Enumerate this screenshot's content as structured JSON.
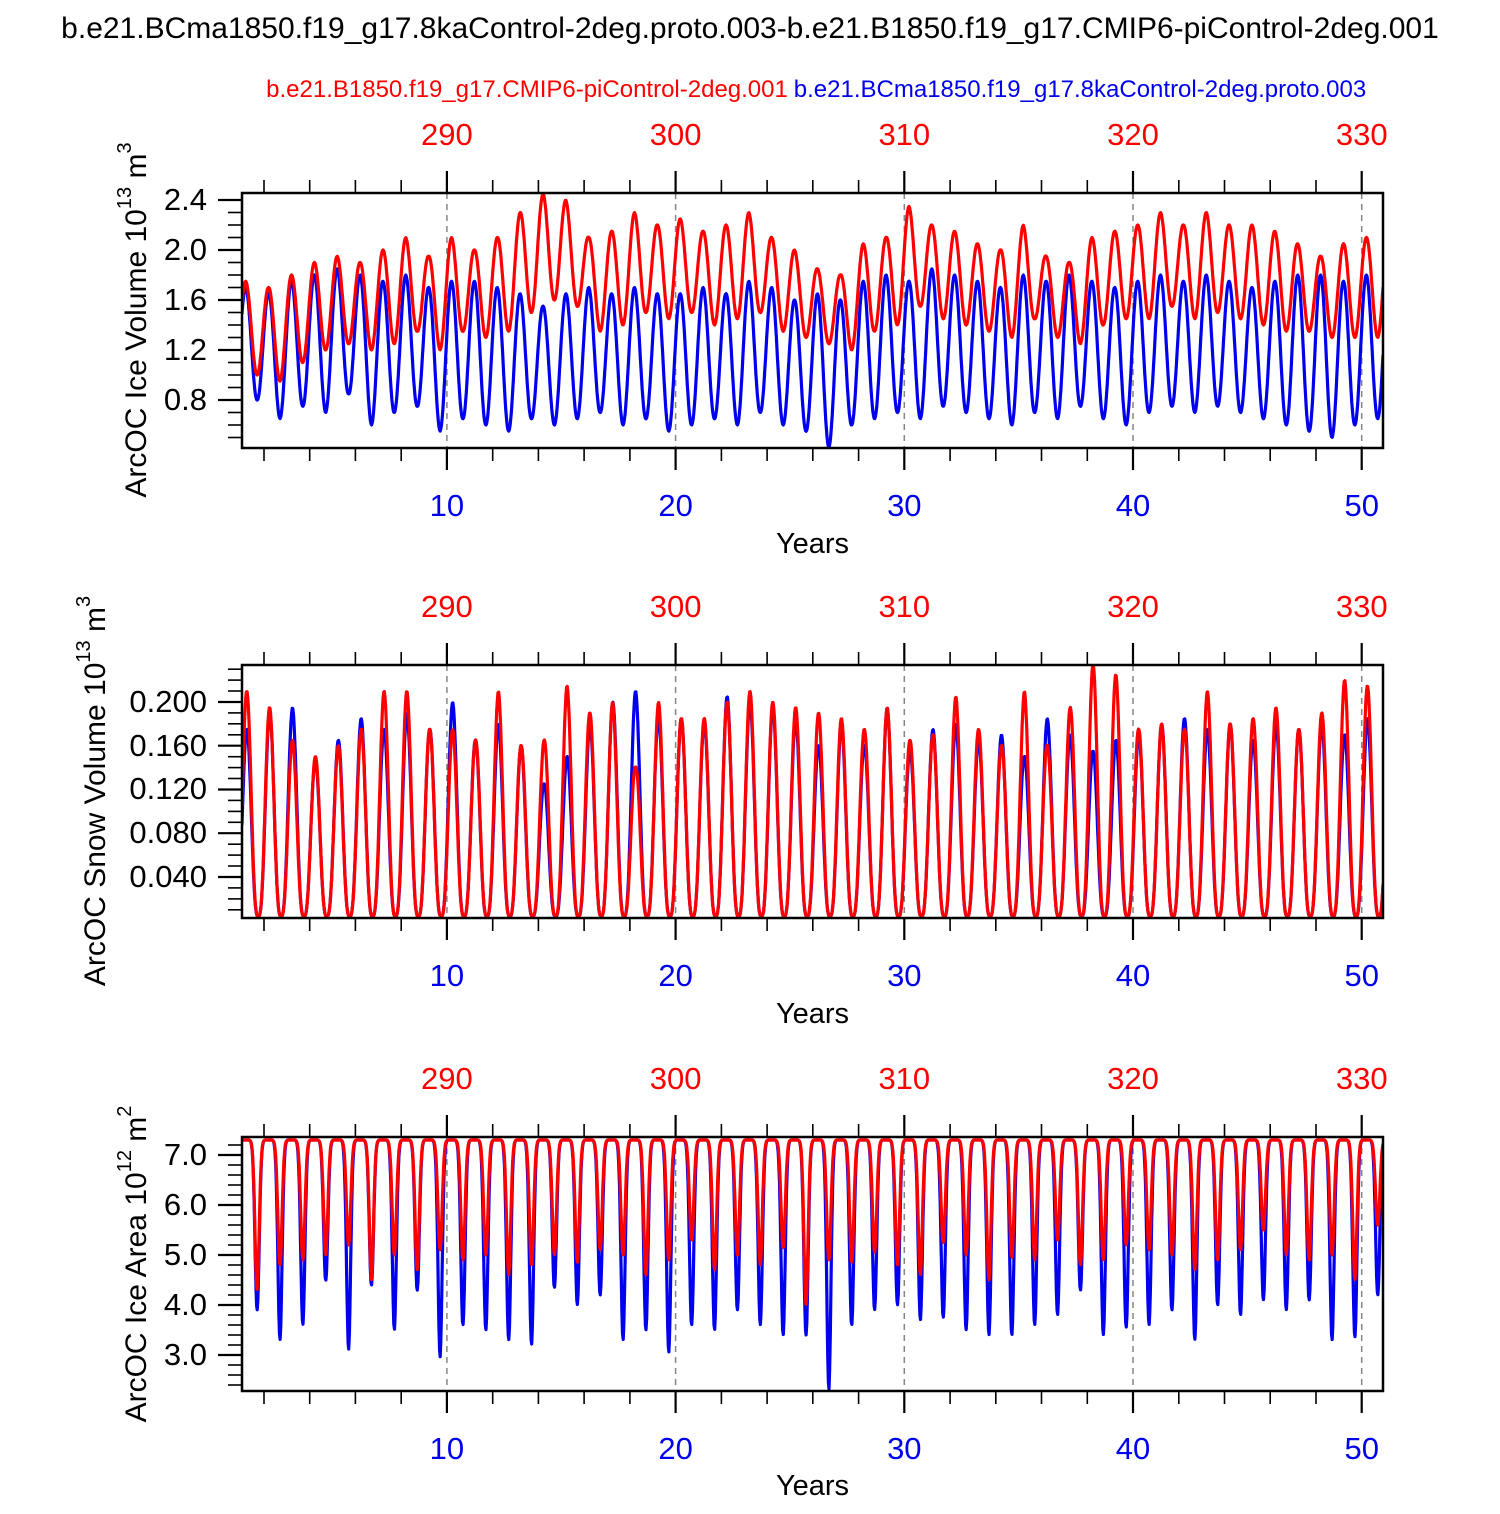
{
  "title": "b.e21.BCma1850.f19_g17.8kaControl-2deg.proto.003-b.e21.B1850.f19_g17.CMIP6-piControl-2deg.001",
  "legend": {
    "red": "b.e21.B1850.f19_g17.CMIP6-piControl-2deg.001",
    "blue": "b.e21.BCma1850.f19_g17.8kaControl-2deg.proto.003"
  },
  "colors": {
    "red": "#ff0000",
    "blue": "#0000ee",
    "grid": "#858585",
    "axis": "#000000",
    "text": "#000000"
  },
  "chart_data": [
    {
      "type": "line",
      "panel": "arcoc-ice-volume",
      "ylabel": {
        "base": "ArcOC Ice Volume 10",
        "exp": "13",
        "unit": " m",
        "unit_exp": "3"
      },
      "xlabel": "Years",
      "x_bottom_ticks": [
        10,
        20,
        30,
        40,
        50
      ],
      "x_top_ticks": [
        290,
        300,
        310,
        320,
        330
      ],
      "x_minor_step": 2,
      "xlim": [
        1.04,
        50.93
      ],
      "ylim": [
        0.416,
        2.456
      ],
      "y_tick_labels": [
        "2.4",
        "2.0",
        "1.6",
        "1.2",
        "0.8"
      ],
      "y_tick_values": [
        2.4,
        2.0,
        1.6,
        1.2,
        0.8
      ],
      "y_minor_step": 0.1,
      "grid": "dashed-vertical-at-major-x",
      "legend_position": "top",
      "start_year": 1,
      "series": [
        {
          "name": "b.e21.BCma1850.f19_g17.8kaControl-2deg.proto.003",
          "color": "blue",
          "waveform": {
            "shape": "cosine",
            "peak_frac": 0.2,
            "power": 1
          },
          "annual_max": [
            1.7,
            1.65,
            1.75,
            1.8,
            1.85,
            1.8,
            1.75,
            1.8,
            1.7,
            1.75,
            1.75,
            1.7,
            1.65,
            1.55,
            1.65,
            1.7,
            1.65,
            1.7,
            1.65,
            1.65,
            1.7,
            1.65,
            1.75,
            1.7,
            1.6,
            1.65,
            1.6,
            1.75,
            1.8,
            1.75,
            1.85,
            1.8,
            1.75,
            1.7,
            1.8,
            1.75,
            1.8,
            1.75,
            1.7,
            1.75,
            1.8,
            1.75,
            1.8,
            1.75,
            1.7,
            1.75,
            1.8,
            1.8,
            1.75,
            1.8,
            1.8,
            1.8
          ],
          "annual_min": [
            0.8,
            0.65,
            0.75,
            0.7,
            0.85,
            0.6,
            0.7,
            0.75,
            0.55,
            0.65,
            0.6,
            0.55,
            0.65,
            0.6,
            0.65,
            0.7,
            0.6,
            0.65,
            0.55,
            0.6,
            0.65,
            0.6,
            0.7,
            0.6,
            0.55,
            0.42,
            0.6,
            0.65,
            0.7,
            0.65,
            0.75,
            0.7,
            0.65,
            0.6,
            0.7,
            0.65,
            0.75,
            0.65,
            0.6,
            0.7,
            0.75,
            0.7,
            0.75,
            0.7,
            0.65,
            0.6,
            0.55,
            0.5,
            0.6,
            0.65,
            0.7,
            0.7
          ]
        },
        {
          "name": "b.e21.B1850.f19_g17.CMIP6-piControl-2deg.001",
          "color": "red",
          "waveform": {
            "shape": "cosine",
            "peak_frac": 0.2,
            "power": 1
          },
          "annual_max": [
            1.75,
            1.7,
            1.8,
            1.9,
            1.95,
            1.9,
            2.0,
            2.1,
            1.95,
            2.1,
            2.0,
            2.1,
            2.3,
            2.45,
            2.4,
            2.1,
            2.15,
            2.3,
            2.2,
            2.25,
            2.15,
            2.2,
            2.3,
            2.1,
            2.0,
            1.85,
            1.8,
            2.05,
            2.1,
            2.35,
            2.2,
            2.15,
            2.05,
            2.0,
            2.2,
            1.95,
            1.9,
            2.1,
            2.15,
            2.2,
            2.3,
            2.2,
            2.3,
            2.2,
            2.2,
            2.15,
            2.05,
            1.95,
            2.05,
            2.1,
            2.2,
            2.2
          ],
          "annual_min": [
            1.0,
            0.95,
            1.1,
            1.2,
            1.25,
            1.2,
            1.25,
            1.35,
            1.2,
            1.35,
            1.3,
            1.35,
            1.5,
            1.6,
            1.55,
            1.35,
            1.4,
            1.5,
            1.45,
            1.5,
            1.4,
            1.45,
            1.5,
            1.35,
            1.3,
            1.25,
            1.2,
            1.35,
            1.4,
            1.55,
            1.45,
            1.4,
            1.35,
            1.3,
            1.45,
            1.3,
            1.25,
            1.4,
            1.45,
            1.45,
            1.55,
            1.45,
            1.5,
            1.45,
            1.4,
            1.35,
            1.35,
            1.3,
            1.3,
            1.3,
            1.45,
            1.45
          ]
        }
      ]
    },
    {
      "type": "line",
      "panel": "arcoc-snow-volume",
      "ylabel": {
        "base": "ArcOC Snow Volume 10",
        "exp": "13",
        "unit": " m",
        "unit_exp": "3"
      },
      "xlabel": "Years",
      "x_bottom_ticks": [
        10,
        20,
        30,
        40,
        50
      ],
      "x_top_ticks": [
        290,
        300,
        310,
        320,
        330
      ],
      "x_minor_step": 2,
      "xlim": [
        1.04,
        50.93
      ],
      "ylim": [
        0.0025,
        0.2338
      ],
      "y_tick_labels": [
        "0.200",
        "0.160",
        "0.120",
        "0.080",
        "0.040"
      ],
      "y_tick_values": [
        0.2,
        0.16,
        0.12,
        0.08,
        0.04
      ],
      "y_minor_step": 0.01,
      "grid": "dashed-vertical-at-major-x",
      "start_year": 1,
      "series": [
        {
          "name": "b.e21.BCma1850.f19_g17.8kaControl-2deg.proto.003",
          "color": "blue",
          "waveform": {
            "shape": "cosine",
            "peak_frac": 0.25,
            "power": 1.5
          },
          "annual_max": [
            0.175,
            0.19,
            0.195,
            0.145,
            0.165,
            0.185,
            0.175,
            0.19,
            0.175,
            0.2,
            0.165,
            0.18,
            0.16,
            0.125,
            0.15,
            0.18,
            0.2,
            0.21,
            0.185,
            0.185,
            0.18,
            0.205,
            0.2,
            0.195,
            0.185,
            0.16,
            0.18,
            0.16,
            0.195,
            0.155,
            0.175,
            0.18,
            0.165,
            0.17,
            0.15,
            0.185,
            0.17,
            0.155,
            0.165,
            0.17,
            0.18,
            0.185,
            0.175,
            0.18,
            0.165,
            0.18,
            0.175,
            0.18,
            0.17,
            0.185,
            0.185,
            0.18
          ],
          "annual_min_const": 0.004
        },
        {
          "name": "b.e21.B1850.f19_g17.CMIP6-piControl-2deg.001",
          "color": "red",
          "waveform": {
            "shape": "cosine",
            "peak_frac": 0.25,
            "power": 1.5
          },
          "annual_max": [
            0.21,
            0.195,
            0.165,
            0.15,
            0.16,
            0.175,
            0.21,
            0.21,
            0.175,
            0.175,
            0.165,
            0.21,
            0.16,
            0.165,
            0.215,
            0.19,
            0.2,
            0.14,
            0.2,
            0.185,
            0.185,
            0.2,
            0.21,
            0.2,
            0.195,
            0.19,
            0.185,
            0.175,
            0.195,
            0.165,
            0.17,
            0.205,
            0.175,
            0.16,
            0.21,
            0.16,
            0.195,
            0.235,
            0.225,
            0.175,
            0.18,
            0.175,
            0.21,
            0.18,
            0.185,
            0.195,
            0.175,
            0.19,
            0.22,
            0.215,
            0.185,
            0.18
          ],
          "annual_min_const": 0.004
        }
      ]
    },
    {
      "type": "line",
      "panel": "arcoc-ice-area",
      "ylabel": {
        "base": "ArcOC Ice Area 10",
        "exp": "12",
        "unit": " m",
        "unit_exp": "2"
      },
      "xlabel": "Years",
      "x_bottom_ticks": [
        10,
        20,
        30,
        40,
        50
      ],
      "x_top_ticks": [
        290,
        300,
        310,
        320,
        330
      ],
      "x_minor_step": 2,
      "xlim": [
        1.04,
        50.93
      ],
      "ylim": [
        2.28,
        7.36
      ],
      "y_tick_labels": [
        "7.0",
        "6.0",
        "5.0",
        "4.0",
        "3.0"
      ],
      "y_tick_values": [
        7.0,
        6.0,
        5.0,
        4.0,
        3.0
      ],
      "y_minor_step": 0.2,
      "grid": "dashed-vertical-at-major-x",
      "start_year": 1,
      "series": [
        {
          "name": "b.e21.BCma1850.f19_g17.8kaControl-2deg.proto.003",
          "color": "blue",
          "waveform": {
            "shape": "dip",
            "dip_frac": 0.7,
            "dip_sigma": 0.13
          },
          "annual_max_const": 7.3,
          "annual_min": [
            3.9,
            3.3,
            3.6,
            4.5,
            3.1,
            4.4,
            3.5,
            4.3,
            2.95,
            3.6,
            3.5,
            3.3,
            3.2,
            4.35,
            4.0,
            4.2,
            3.3,
            3.5,
            3.05,
            3.6,
            3.5,
            3.9,
            3.6,
            3.4,
            3.4,
            2.3,
            3.6,
            3.9,
            4.0,
            3.7,
            3.75,
            3.5,
            3.4,
            3.4,
            3.6,
            3.8,
            4.3,
            3.4,
            3.55,
            3.6,
            3.9,
            3.3,
            4.0,
            3.8,
            4.1,
            3.9,
            4.1,
            3.3,
            3.35,
            4.2,
            3.8,
            3.8
          ]
        },
        {
          "name": "b.e21.B1850.f19_g17.CMIP6-piControl-2deg.001",
          "color": "red",
          "waveform": {
            "shape": "dip",
            "dip_frac": 0.7,
            "dip_sigma": 0.13
          },
          "annual_max_const": 7.3,
          "annual_min": [
            4.3,
            4.8,
            4.9,
            5.0,
            5.2,
            4.5,
            5.0,
            4.7,
            5.1,
            4.9,
            5.0,
            4.6,
            4.8,
            5.0,
            4.85,
            5.1,
            5.0,
            4.6,
            4.9,
            5.3,
            4.7,
            5.0,
            4.8,
            5.15,
            4.0,
            4.9,
            4.85,
            5.05,
            4.8,
            4.6,
            5.25,
            5.0,
            4.5,
            4.95,
            4.9,
            5.3,
            4.8,
            4.9,
            5.2,
            5.1,
            5.0,
            4.7,
            4.9,
            5.1,
            5.5,
            5.0,
            4.9,
            5.0,
            4.5,
            5.6,
            5.0,
            5.0
          ]
        }
      ]
    }
  ]
}
